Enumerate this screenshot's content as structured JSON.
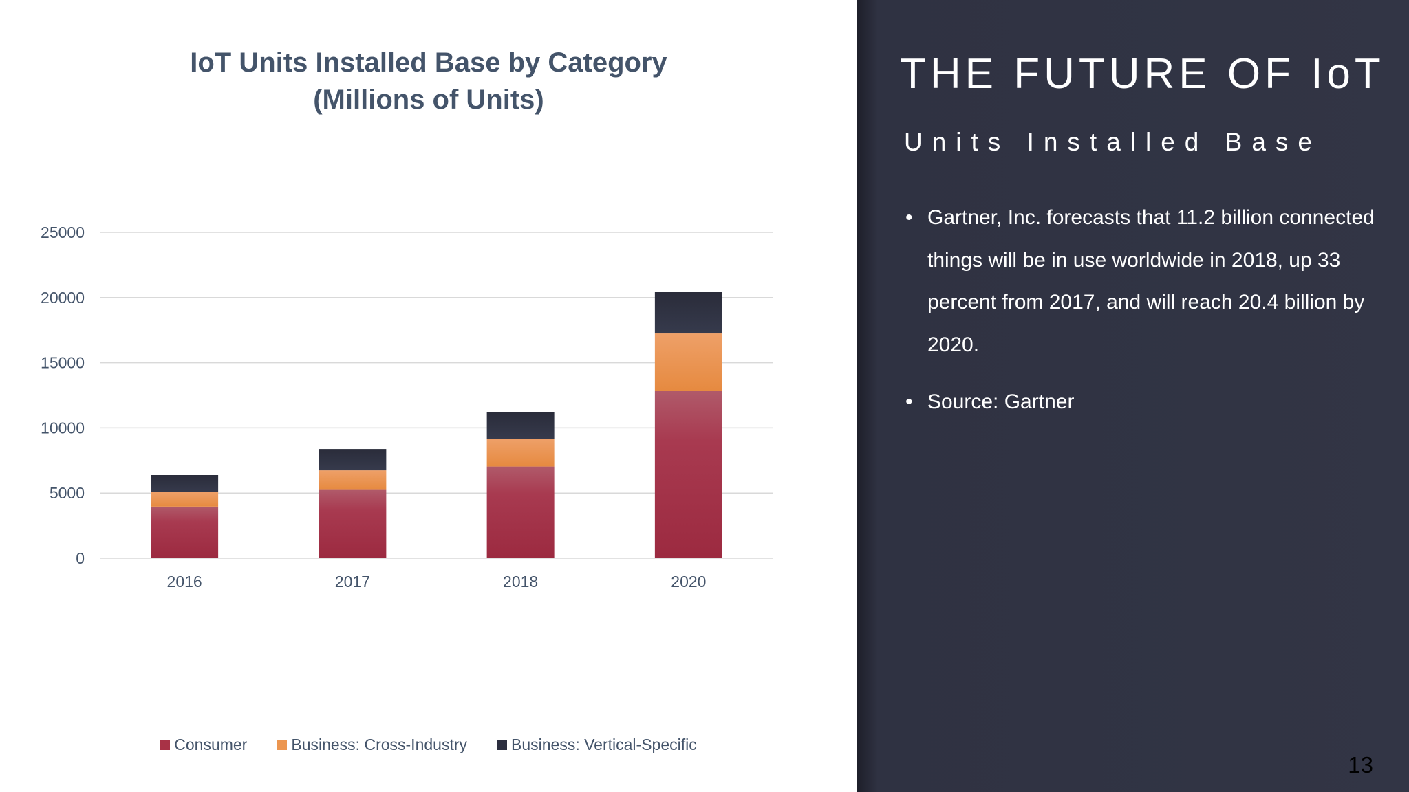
{
  "slide": {
    "title": "THE FUTURE OF IoT",
    "subtitle": "Units Installed Base",
    "bullets": [
      "Gartner, Inc. forecasts that 11.2 billion connected things will be in use worldwide in 2018, up 33 percent from 2017, and will reach 20.4 billion by 2020.",
      "Source: Gartner"
    ],
    "bullet_glyph": "•",
    "page_number": "13"
  },
  "chart_data": {
    "type": "bar",
    "stacked": true,
    "title_lines": [
      "IoT Units Installed Base by Category",
      "(Millions of Units)"
    ],
    "categories": [
      "2016",
      "2017",
      "2018",
      "2020"
    ],
    "series": [
      {
        "name": "Consumer",
        "values": [
          3963.0,
          5244.3,
          7036.3,
          12863.0
        ],
        "color": "#a83246"
      },
      {
        "name": "Business: Cross-Industry",
        "values": [
          1102.1,
          1501.0,
          2132.6,
          4381.4
        ],
        "color": "#ec9650"
      },
      {
        "name": "Business: Vertical-Specific",
        "values": [
          1316.6,
          1635.4,
          2027.7,
          3171.0
        ],
        "color": "#2c2f3f"
      }
    ],
    "ylim": [
      0,
      25000
    ],
    "yticks": [
      "0",
      "5000",
      "10000",
      "15000",
      "20000",
      "25000"
    ],
    "grid": true,
    "legend": "bottom"
  }
}
